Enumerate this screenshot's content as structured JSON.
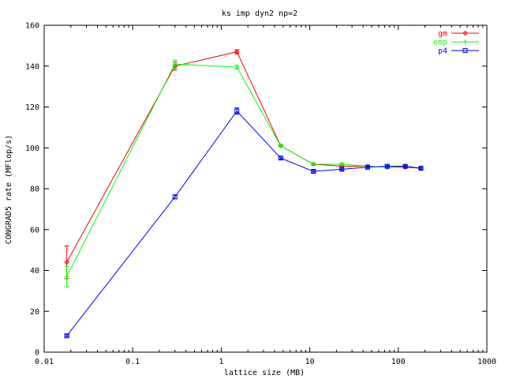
{
  "chart_data": {
    "type": "line",
    "title": "ks imp dyn2 np=2",
    "xlabel": "lattice size (MB)",
    "ylabel": "CONGRAD5 rate (MFlop/s)",
    "xscale": "log",
    "xlim": [
      0.01,
      1000
    ],
    "ylim": [
      0,
      160
    ],
    "x_ticks": [
      0.01,
      0.1,
      1,
      10,
      100,
      1000
    ],
    "x_tick_labels": [
      "0.01",
      "0.1",
      "1",
      "10",
      "100",
      "1000"
    ],
    "y_ticks": [
      0,
      20,
      40,
      60,
      80,
      100,
      120,
      140,
      160
    ],
    "y_tick_labels": [
      "0",
      "20",
      "40",
      "60",
      "80",
      "100",
      "120",
      "140",
      "160"
    ],
    "grid": false,
    "legend_position": "top-right",
    "series": [
      {
        "name": "gm",
        "color": "#ff0000",
        "marker": "diamond",
        "x": [
          0.018,
          0.3,
          1.5,
          4.7,
          11,
          23,
          45,
          75,
          120,
          180
        ],
        "y": [
          44,
          140,
          147,
          101,
          92,
          91,
          91,
          90.5,
          90.5,
          90
        ],
        "err": [
          8,
          2,
          1,
          0.5,
          0.5,
          0.5,
          0.5,
          0.5,
          0.5,
          0.5
        ]
      },
      {
        "name": "emp",
        "color": "#00ff00",
        "marker": "plus",
        "x": [
          0.018,
          0.3,
          1.5,
          4.7,
          11,
          23,
          45,
          75,
          120,
          180
        ],
        "y": [
          37,
          141,
          139.5,
          101,
          92,
          92,
          91,
          90.5,
          91,
          90
        ],
        "err": [
          5,
          2,
          1,
          0.5,
          0.5,
          0.5,
          0.5,
          0.5,
          0.5,
          0.5
        ]
      },
      {
        "name": "p4",
        "color": "#0000ff",
        "marker": "square",
        "x": [
          0.018,
          0.3,
          1.5,
          4.7,
          11,
          23,
          45,
          75,
          120,
          180
        ],
        "y": [
          8,
          76,
          118,
          95,
          88.5,
          89.5,
          90.5,
          91,
          91,
          90
        ],
        "err": [
          0.5,
          1,
          1.5,
          0.5,
          0.5,
          0.5,
          0.5,
          0.5,
          0.5,
          0.5
        ]
      }
    ]
  }
}
